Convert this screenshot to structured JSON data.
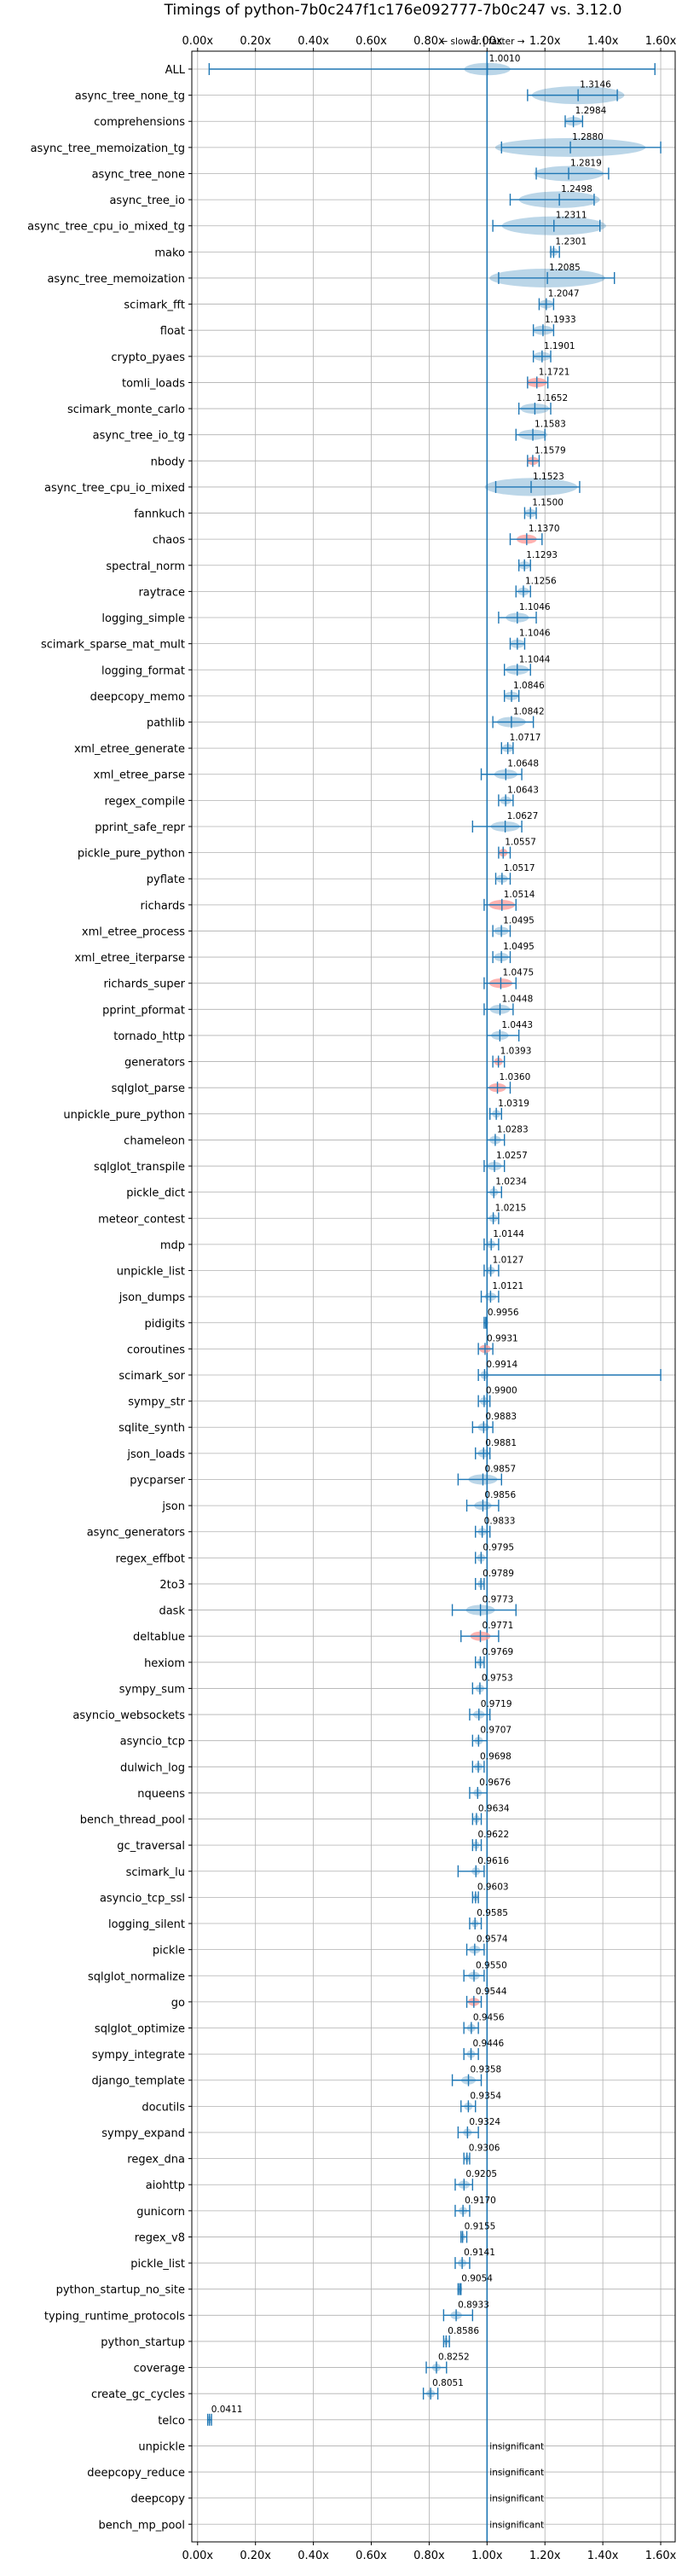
{
  "chart_data": {
    "type": "violin",
    "title": "Timings of python-7b0c247f1c176e092777-7b0c247 vs. 3.12.0",
    "subtitle": "← slower | faster →",
    "x_ticks": [
      "0.00x",
      "0.20x",
      "0.40x",
      "0.60x",
      "0.80x",
      "1.00x",
      "1.20x",
      "1.40x",
      "1.60x"
    ],
    "x_tick_values": [
      0.0,
      0.2,
      0.4,
      0.6,
      0.8,
      1.0,
      1.2,
      1.4,
      1.6
    ],
    "xlim": [
      -0.02,
      1.65
    ],
    "reference_line": 1.0,
    "grid": true,
    "insignificant_label": "insignificant",
    "colors": {
      "violin": "#1f77b4",
      "highlight": "#ff9896",
      "refline": "#1f77b4",
      "grid": "#b0b0b0"
    },
    "benchmarks": [
      {
        "name": "ALL",
        "label": "1.0010",
        "mean": 1.001,
        "min": 0.04,
        "max": 1.58,
        "spread": 0.08,
        "highlight": false
      },
      {
        "name": "async_tree_none_tg",
        "label": "1.3146",
        "mean": 1.3146,
        "min": 1.14,
        "max": 1.45,
        "spread": 0.16,
        "highlight": false
      },
      {
        "name": "comprehensions",
        "label": "1.2984",
        "mean": 1.2984,
        "min": 1.27,
        "max": 1.33,
        "spread": 0.03,
        "highlight": false
      },
      {
        "name": "async_tree_memoization_tg",
        "label": "1.2880",
        "mean": 1.288,
        "min": 1.05,
        "max": 1.6,
        "spread": 0.26,
        "highlight": false
      },
      {
        "name": "async_tree_none",
        "label": "1.2819",
        "mean": 1.2819,
        "min": 1.17,
        "max": 1.42,
        "spread": 0.12,
        "highlight": false
      },
      {
        "name": "async_tree_io",
        "label": "1.2498",
        "mean": 1.2498,
        "min": 1.08,
        "max": 1.37,
        "spread": 0.14,
        "highlight": false
      },
      {
        "name": "async_tree_cpu_io_mixed_tg",
        "label": "1.2311",
        "mean": 1.2311,
        "min": 1.02,
        "max": 1.39,
        "spread": 0.18,
        "highlight": false
      },
      {
        "name": "mako",
        "label": "1.2301",
        "mean": 1.2301,
        "min": 1.22,
        "max": 1.25,
        "spread": 0.015,
        "highlight": false
      },
      {
        "name": "async_tree_memoization",
        "label": "1.2085",
        "mean": 1.2085,
        "min": 1.04,
        "max": 1.44,
        "spread": 0.2,
        "highlight": false
      },
      {
        "name": "scimark_fft",
        "label": "1.2047",
        "mean": 1.2047,
        "min": 1.18,
        "max": 1.23,
        "spread": 0.025,
        "highlight": false
      },
      {
        "name": "float",
        "label": "1.1933",
        "mean": 1.1933,
        "min": 1.16,
        "max": 1.23,
        "spread": 0.035,
        "highlight": false
      },
      {
        "name": "crypto_pyaes",
        "label": "1.1901",
        "mean": 1.1901,
        "min": 1.16,
        "max": 1.22,
        "spread": 0.03,
        "highlight": false
      },
      {
        "name": "tomli_loads",
        "label": "1.1721",
        "mean": 1.1721,
        "min": 1.14,
        "max": 1.21,
        "spread": 0.035,
        "highlight": true
      },
      {
        "name": "scimark_monte_carlo",
        "label": "1.1652",
        "mean": 1.1652,
        "min": 1.11,
        "max": 1.22,
        "spread": 0.05,
        "highlight": false
      },
      {
        "name": "async_tree_io_tg",
        "label": "1.1583",
        "mean": 1.1583,
        "min": 1.1,
        "max": 1.2,
        "spread": 0.05,
        "highlight": false
      },
      {
        "name": "nbody",
        "label": "1.1579",
        "mean": 1.1579,
        "min": 1.14,
        "max": 1.18,
        "spread": 0.02,
        "highlight": true
      },
      {
        "name": "async_tree_cpu_io_mixed",
        "label": "1.1523",
        "mean": 1.1523,
        "min": 1.03,
        "max": 1.32,
        "spread": 0.16,
        "highlight": false
      },
      {
        "name": "fannkuch",
        "label": "1.1500",
        "mean": 1.15,
        "min": 1.13,
        "max": 1.17,
        "spread": 0.02,
        "highlight": false
      },
      {
        "name": "chaos",
        "label": "1.1370",
        "mean": 1.137,
        "min": 1.08,
        "max": 1.19,
        "spread": 0.035,
        "highlight": true
      },
      {
        "name": "spectral_norm",
        "label": "1.1293",
        "mean": 1.1293,
        "min": 1.11,
        "max": 1.15,
        "spread": 0.02,
        "highlight": false
      },
      {
        "name": "raytrace",
        "label": "1.1256",
        "mean": 1.1256,
        "min": 1.1,
        "max": 1.15,
        "spread": 0.02,
        "highlight": false
      },
      {
        "name": "logging_simple",
        "label": "1.1046",
        "mean": 1.1046,
        "min": 1.04,
        "max": 1.17,
        "spread": 0.04,
        "highlight": false
      },
      {
        "name": "scimark_sparse_mat_mult",
        "label": "1.1046",
        "mean": 1.1046,
        "min": 1.08,
        "max": 1.13,
        "spread": 0.025,
        "highlight": false
      },
      {
        "name": "logging_format",
        "label": "1.1044",
        "mean": 1.1044,
        "min": 1.06,
        "max": 1.15,
        "spread": 0.04,
        "highlight": false
      },
      {
        "name": "deepcopy_memo",
        "label": "1.0846",
        "mean": 1.0846,
        "min": 1.06,
        "max": 1.11,
        "spread": 0.025,
        "highlight": false
      },
      {
        "name": "pathlib",
        "label": "1.0842",
        "mean": 1.0842,
        "min": 1.02,
        "max": 1.16,
        "spread": 0.05,
        "highlight": false
      },
      {
        "name": "xml_etree_generate",
        "label": "1.0717",
        "mean": 1.0717,
        "min": 1.05,
        "max": 1.09,
        "spread": 0.02,
        "highlight": false
      },
      {
        "name": "xml_etree_parse",
        "label": "1.0648",
        "mean": 1.0648,
        "min": 0.98,
        "max": 1.12,
        "spread": 0.04,
        "highlight": false
      },
      {
        "name": "regex_compile",
        "label": "1.0643",
        "mean": 1.0643,
        "min": 1.04,
        "max": 1.09,
        "spread": 0.02,
        "highlight": false
      },
      {
        "name": "pprint_safe_repr",
        "label": "1.0627",
        "mean": 1.0627,
        "min": 0.95,
        "max": 1.12,
        "spread": 0.05,
        "highlight": false
      },
      {
        "name": "pickle_pure_python",
        "label": "1.0557",
        "mean": 1.0557,
        "min": 1.04,
        "max": 1.08,
        "spread": 0.015,
        "highlight": true
      },
      {
        "name": "pyflate",
        "label": "1.0517",
        "mean": 1.0517,
        "min": 1.03,
        "max": 1.08,
        "spread": 0.02,
        "highlight": false
      },
      {
        "name": "richards",
        "label": "1.0514",
        "mean": 1.0514,
        "min": 0.99,
        "max": 1.1,
        "spread": 0.045,
        "highlight": true
      },
      {
        "name": "xml_etree_process",
        "label": "1.0495",
        "mean": 1.0495,
        "min": 1.02,
        "max": 1.08,
        "spread": 0.025,
        "highlight": false
      },
      {
        "name": "xml_etree_iterparse",
        "label": "1.0495",
        "mean": 1.0495,
        "min": 1.02,
        "max": 1.08,
        "spread": 0.025,
        "highlight": false
      },
      {
        "name": "richards_super",
        "label": "1.0475",
        "mean": 1.0475,
        "min": 0.99,
        "max": 1.1,
        "spread": 0.04,
        "highlight": true
      },
      {
        "name": "pprint_pformat",
        "label": "1.0448",
        "mean": 1.0448,
        "min": 0.99,
        "max": 1.09,
        "spread": 0.035,
        "highlight": false
      },
      {
        "name": "tornado_http",
        "label": "1.0443",
        "mean": 1.0443,
        "min": 1.0,
        "max": 1.11,
        "spread": 0.03,
        "highlight": false
      },
      {
        "name": "generators",
        "label": "1.0393",
        "mean": 1.0393,
        "min": 1.02,
        "max": 1.06,
        "spread": 0.015,
        "highlight": true
      },
      {
        "name": "sqlglot_parse",
        "label": "1.0360",
        "mean": 1.036,
        "min": 1.0,
        "max": 1.08,
        "spread": 0.03,
        "highlight": true
      },
      {
        "name": "unpickle_pure_python",
        "label": "1.0319",
        "mean": 1.0319,
        "min": 1.01,
        "max": 1.05,
        "spread": 0.015,
        "highlight": false
      },
      {
        "name": "chameleon",
        "label": "1.0283",
        "mean": 1.0283,
        "min": 1.0,
        "max": 1.06,
        "spread": 0.02,
        "highlight": false
      },
      {
        "name": "sqlglot_transpile",
        "label": "1.0257",
        "mean": 1.0257,
        "min": 0.99,
        "max": 1.06,
        "spread": 0.025,
        "highlight": false
      },
      {
        "name": "pickle_dict",
        "label": "1.0234",
        "mean": 1.0234,
        "min": 1.0,
        "max": 1.05,
        "spread": 0.015,
        "highlight": false
      },
      {
        "name": "meteor_contest",
        "label": "1.0215",
        "mean": 1.0215,
        "min": 1.0,
        "max": 1.04,
        "spread": 0.015,
        "highlight": false
      },
      {
        "name": "mdp",
        "label": "1.0144",
        "mean": 1.0144,
        "min": 0.99,
        "max": 1.04,
        "spread": 0.015,
        "highlight": false
      },
      {
        "name": "unpickle_list",
        "label": "1.0127",
        "mean": 1.0127,
        "min": 0.99,
        "max": 1.04,
        "spread": 0.015,
        "highlight": false
      },
      {
        "name": "json_dumps",
        "label": "1.0121",
        "mean": 1.0121,
        "min": 0.98,
        "max": 1.04,
        "spread": 0.02,
        "highlight": false
      },
      {
        "name": "pidigits",
        "label": "0.9956",
        "mean": 0.9956,
        "min": 0.99,
        "max": 1.0,
        "spread": 0.006,
        "highlight": false
      },
      {
        "name": "coroutines",
        "label": "0.9931",
        "mean": 0.9931,
        "min": 0.97,
        "max": 1.02,
        "spread": 0.02,
        "highlight": true
      },
      {
        "name": "scimark_sor",
        "label": "0.9914",
        "mean": 0.9914,
        "min": 0.97,
        "max": 1.6,
        "spread": 0.015,
        "highlight": false
      },
      {
        "name": "sympy_str",
        "label": "0.9900",
        "mean": 0.99,
        "min": 0.97,
        "max": 1.01,
        "spread": 0.015,
        "highlight": false
      },
      {
        "name": "sqlite_synth",
        "label": "0.9883",
        "mean": 0.9883,
        "min": 0.95,
        "max": 1.02,
        "spread": 0.02,
        "highlight": false
      },
      {
        "name": "json_loads",
        "label": "0.9881",
        "mean": 0.9881,
        "min": 0.96,
        "max": 1.01,
        "spread": 0.02,
        "highlight": false
      },
      {
        "name": "pycparser",
        "label": "0.9857",
        "mean": 0.9857,
        "min": 0.9,
        "max": 1.05,
        "spread": 0.05,
        "highlight": false
      },
      {
        "name": "json",
        "label": "0.9856",
        "mean": 0.9856,
        "min": 0.93,
        "max": 1.04,
        "spread": 0.03,
        "highlight": false
      },
      {
        "name": "async_generators",
        "label": "0.9833",
        "mean": 0.9833,
        "min": 0.96,
        "max": 1.01,
        "spread": 0.015,
        "highlight": false
      },
      {
        "name": "regex_effbot",
        "label": "0.9795",
        "mean": 0.9795,
        "min": 0.96,
        "max": 1.0,
        "spread": 0.015,
        "highlight": false
      },
      {
        "name": "2to3",
        "label": "0.9789",
        "mean": 0.9789,
        "min": 0.96,
        "max": 0.99,
        "spread": 0.012,
        "highlight": false
      },
      {
        "name": "dask",
        "label": "0.9773",
        "mean": 0.9773,
        "min": 0.88,
        "max": 1.1,
        "spread": 0.05,
        "highlight": false
      },
      {
        "name": "deltablue",
        "label": "0.9771",
        "mean": 0.9771,
        "min": 0.91,
        "max": 1.04,
        "spread": 0.035,
        "highlight": true
      },
      {
        "name": "hexiom",
        "label": "0.9769",
        "mean": 0.9769,
        "min": 0.96,
        "max": 0.99,
        "spread": 0.012,
        "highlight": false
      },
      {
        "name": "sympy_sum",
        "label": "0.9753",
        "mean": 0.9753,
        "min": 0.95,
        "max": 1.0,
        "spread": 0.015,
        "highlight": false
      },
      {
        "name": "asyncio_websockets",
        "label": "0.9719",
        "mean": 0.9719,
        "min": 0.94,
        "max": 1.01,
        "spread": 0.02,
        "highlight": false
      },
      {
        "name": "asyncio_tcp",
        "label": "0.9707",
        "mean": 0.9707,
        "min": 0.95,
        "max": 1.0,
        "spread": 0.015,
        "highlight": false
      },
      {
        "name": "dulwich_log",
        "label": "0.9698",
        "mean": 0.9698,
        "min": 0.95,
        "max": 0.99,
        "spread": 0.015,
        "highlight": false
      },
      {
        "name": "nqueens",
        "label": "0.9676",
        "mean": 0.9676,
        "min": 0.94,
        "max": 1.0,
        "spread": 0.015,
        "highlight": false
      },
      {
        "name": "bench_thread_pool",
        "label": "0.9634",
        "mean": 0.9634,
        "min": 0.95,
        "max": 0.98,
        "spread": 0.012,
        "highlight": false
      },
      {
        "name": "gc_traversal",
        "label": "0.9622",
        "mean": 0.9622,
        "min": 0.95,
        "max": 0.98,
        "spread": 0.012,
        "highlight": false
      },
      {
        "name": "scimark_lu",
        "label": "0.9616",
        "mean": 0.9616,
        "min": 0.9,
        "max": 0.99,
        "spread": 0.015,
        "highlight": false
      },
      {
        "name": "asyncio_tcp_ssl",
        "label": "0.9603",
        "mean": 0.9603,
        "min": 0.95,
        "max": 0.97,
        "spread": 0.008,
        "highlight": false
      },
      {
        "name": "logging_silent",
        "label": "0.9585",
        "mean": 0.9585,
        "min": 0.94,
        "max": 0.98,
        "spread": 0.012,
        "highlight": false
      },
      {
        "name": "pickle",
        "label": "0.9574",
        "mean": 0.9574,
        "min": 0.93,
        "max": 0.99,
        "spread": 0.02,
        "highlight": false
      },
      {
        "name": "sqlglot_normalize",
        "label": "0.9550",
        "mean": 0.955,
        "min": 0.92,
        "max": 0.99,
        "spread": 0.02,
        "highlight": false
      },
      {
        "name": "go",
        "label": "0.9544",
        "mean": 0.9544,
        "min": 0.93,
        "max": 0.98,
        "spread": 0.02,
        "highlight": true
      },
      {
        "name": "sqlglot_optimize",
        "label": "0.9456",
        "mean": 0.9456,
        "min": 0.92,
        "max": 0.97,
        "spread": 0.015,
        "highlight": false
      },
      {
        "name": "sympy_integrate",
        "label": "0.9446",
        "mean": 0.9446,
        "min": 0.92,
        "max": 0.97,
        "spread": 0.015,
        "highlight": false
      },
      {
        "name": "django_template",
        "label": "0.9358",
        "mean": 0.9358,
        "min": 0.88,
        "max": 0.98,
        "spread": 0.025,
        "highlight": false
      },
      {
        "name": "docutils",
        "label": "0.9354",
        "mean": 0.9354,
        "min": 0.91,
        "max": 0.96,
        "spread": 0.015,
        "highlight": false
      },
      {
        "name": "sympy_expand",
        "label": "0.9324",
        "mean": 0.9324,
        "min": 0.9,
        "max": 0.97,
        "spread": 0.015,
        "highlight": false
      },
      {
        "name": "regex_dna",
        "label": "0.9306",
        "mean": 0.9306,
        "min": 0.92,
        "max": 0.94,
        "spread": 0.008,
        "highlight": false
      },
      {
        "name": "aiohttp",
        "label": "0.9205",
        "mean": 0.9205,
        "min": 0.89,
        "max": 0.95,
        "spread": 0.02,
        "highlight": false
      },
      {
        "name": "gunicorn",
        "label": "0.9170",
        "mean": 0.917,
        "min": 0.89,
        "max": 0.94,
        "spread": 0.015,
        "highlight": false
      },
      {
        "name": "regex_v8",
        "label": "0.9155",
        "mean": 0.9155,
        "min": 0.91,
        "max": 0.93,
        "spread": 0.008,
        "highlight": false
      },
      {
        "name": "pickle_list",
        "label": "0.9141",
        "mean": 0.9141,
        "min": 0.89,
        "max": 0.94,
        "spread": 0.015,
        "highlight": false
      },
      {
        "name": "python_startup_no_site",
        "label": "0.9054",
        "mean": 0.9054,
        "min": 0.9,
        "max": 0.91,
        "spread": 0.005,
        "highlight": false
      },
      {
        "name": "typing_runtime_protocols",
        "label": "0.8933",
        "mean": 0.8933,
        "min": 0.85,
        "max": 0.95,
        "spread": 0.02,
        "highlight": false
      },
      {
        "name": "python_startup",
        "label": "0.8586",
        "mean": 0.8586,
        "min": 0.85,
        "max": 0.87,
        "spread": 0.005,
        "highlight": false
      },
      {
        "name": "coverage",
        "label": "0.8252",
        "mean": 0.8252,
        "min": 0.79,
        "max": 0.86,
        "spread": 0.015,
        "highlight": false
      },
      {
        "name": "create_gc_cycles",
        "label": "0.8051",
        "mean": 0.8051,
        "min": 0.78,
        "max": 0.83,
        "spread": 0.015,
        "highlight": false
      },
      {
        "name": "telco",
        "label": "0.0411",
        "mean": 0.0411,
        "min": 0.035,
        "max": 0.048,
        "spread": 0.004,
        "highlight": false
      },
      {
        "name": "unpickle",
        "label": "",
        "insignificant": true
      },
      {
        "name": "deepcopy_reduce",
        "label": "",
        "insignificant": true
      },
      {
        "name": "deepcopy",
        "label": "",
        "insignificant": true
      },
      {
        "name": "bench_mp_pool",
        "label": "",
        "insignificant": true
      }
    ]
  }
}
